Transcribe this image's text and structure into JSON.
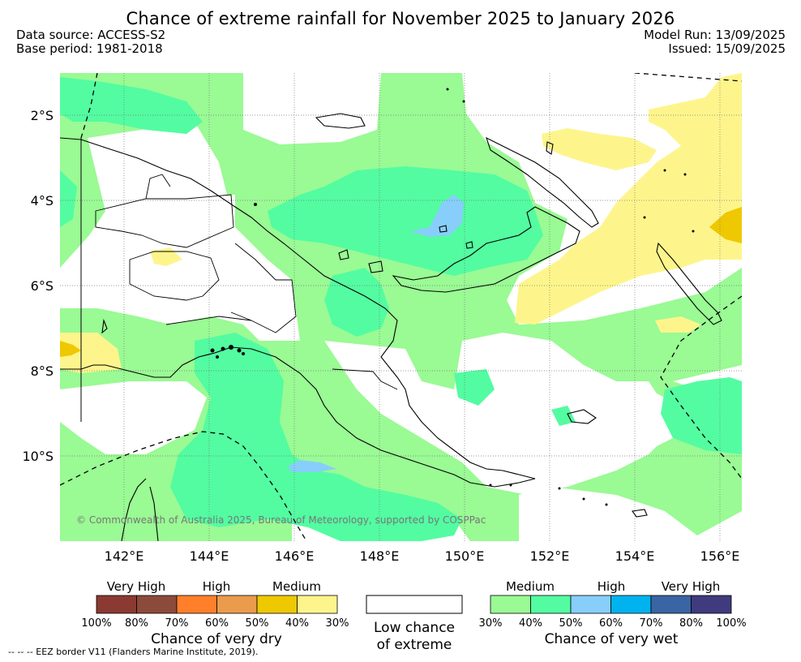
{
  "title": "Chance of extreme rainfall for November 2025 to January 2026",
  "meta": {
    "data_source": "Data source: ACCESS-S2",
    "base_period": "Base period: 1981-2018",
    "model_run": "Model Run: 13/09/2025",
    "issued": "Issued: 15/09/2025"
  },
  "map": {
    "lat_labels": [
      "2°S",
      "4°S",
      "6°S",
      "8°S",
      "10°S"
    ],
    "lon_labels": [
      "142°E",
      "144°E",
      "146°E",
      "148°E",
      "150°E",
      "152°E",
      "154°E",
      "156°E"
    ],
    "copyright": "© Commonwealth of Australia 2025, Bureau of Meteorology, supported by COSPPac",
    "eez_note": "--  --  -- EEZ border V11 (Flanders Marine Institute, 2019)."
  },
  "legend": {
    "dry": {
      "categories": [
        "Very High",
        "High",
        "Medium"
      ],
      "percents": [
        "100%",
        "80%",
        "70%",
        "60%",
        "50%",
        "40%",
        "30%"
      ],
      "colors": [
        "#8b3a32",
        "#8c4b3a",
        "#ff7f2a",
        "#eb9b4c",
        "#eec800",
        "#fdf58c"
      ],
      "caption": "Chance of very dry"
    },
    "neutral": {
      "caption_line1": "Low chance",
      "caption_line2": "of extreme",
      "color": "#ffffff"
    },
    "wet": {
      "categories": [
        "Medium",
        "High",
        "Very High"
      ],
      "percents": [
        "30%",
        "40%",
        "50%",
        "60%",
        "70%",
        "80%",
        "100%"
      ],
      "colors": [
        "#9afa94",
        "#53fca1",
        "#87cefa",
        "#00b2ee",
        "#3a64a3",
        "#3f3b7e"
      ],
      "caption": "Chance of very wet"
    }
  }
}
